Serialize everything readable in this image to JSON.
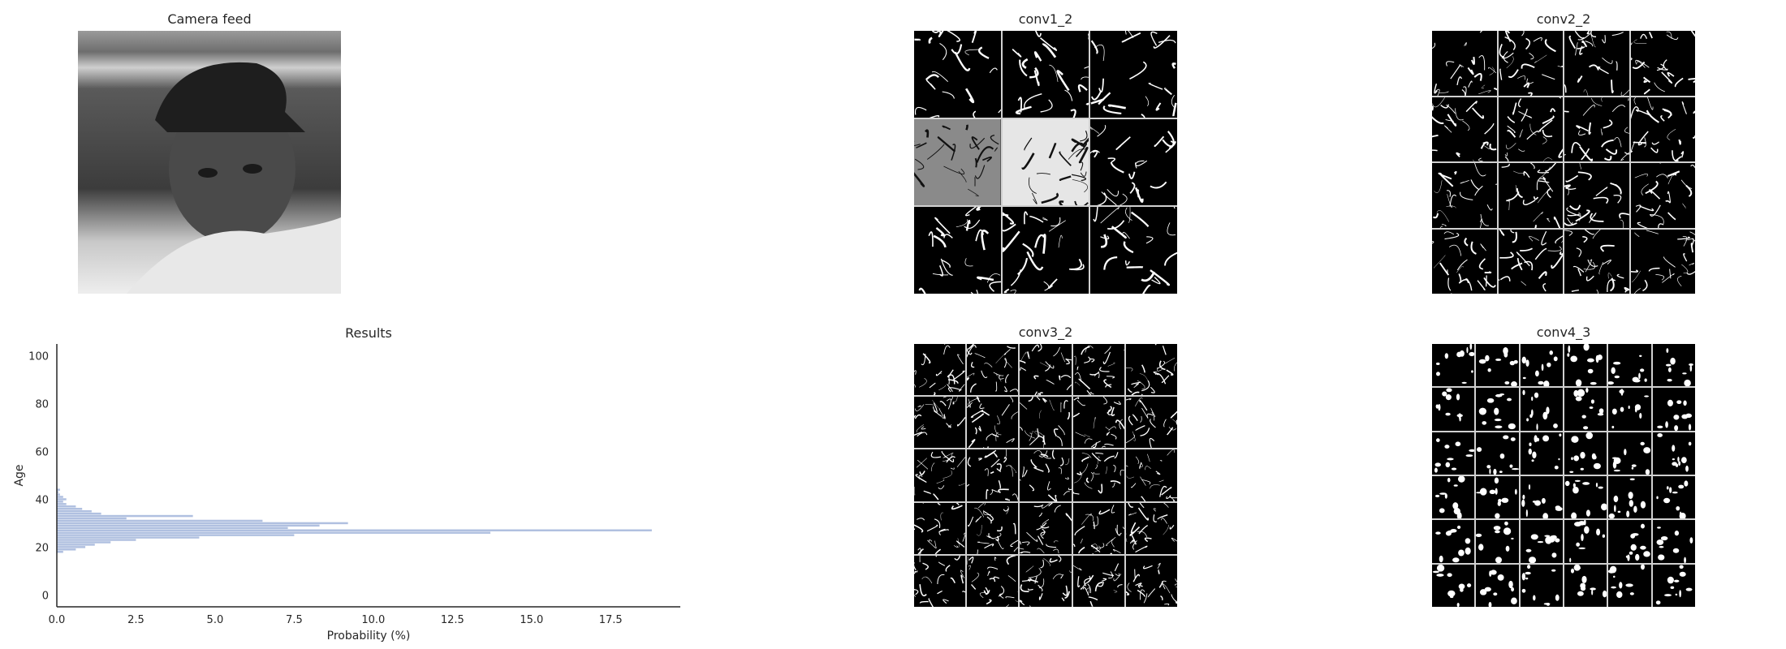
{
  "panels": {
    "camera": {
      "title": "Camera feed"
    },
    "conv1": {
      "title": "conv1_2",
      "rows": 3,
      "cols": 3
    },
    "conv2": {
      "title": "conv2_2",
      "rows": 4,
      "cols": 4
    },
    "conv3": {
      "title": "conv3_2",
      "rows": 5,
      "cols": 5
    },
    "conv4": {
      "title": "conv4_3",
      "rows": 6,
      "cols": 6
    }
  },
  "colors": {
    "bar": "#b0c0e0",
    "axis": "#262626"
  },
  "chart_data": {
    "type": "bar",
    "orientation": "horizontal",
    "title": "Results",
    "xlabel": "Probability (%)",
    "ylabel": "Age",
    "xlim": [
      0,
      19.7
    ],
    "ylim": [
      -5,
      105
    ],
    "xticks": [
      "0.0",
      "2.5",
      "5.0",
      "7.5",
      "10.0",
      "12.5",
      "15.0",
      "17.5"
    ],
    "yticks": [
      "0",
      "20",
      "40",
      "60",
      "80",
      "100"
    ],
    "grid": false,
    "categories": [
      18,
      19,
      20,
      21,
      22,
      23,
      24,
      25,
      26,
      27,
      28,
      29,
      30,
      31,
      32,
      33,
      34,
      35,
      36,
      37,
      38,
      39,
      40,
      41,
      42,
      43,
      44
    ],
    "values": [
      0.2,
      0.6,
      0.9,
      1.2,
      1.7,
      2.5,
      4.5,
      7.5,
      13.7,
      18.8,
      7.3,
      8.3,
      9.2,
      6.5,
      2.2,
      4.3,
      1.4,
      1.1,
      0.8,
      0.6,
      0.3,
      0.2,
      0.3,
      0.2,
      0.1,
      0.05,
      0.1
    ]
  }
}
